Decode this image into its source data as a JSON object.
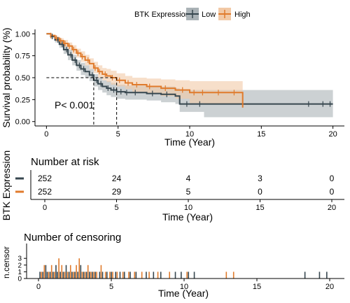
{
  "legend": {
    "title": "BTK Expression",
    "entries": [
      {
        "label": "Low",
        "color": "#37474f"
      },
      {
        "label": "High",
        "color": "#e07b2c"
      }
    ]
  },
  "chart_data": [
    {
      "type": "line",
      "panel": "survival",
      "ylabel": "Survival probability (%)",
      "xlabel": "Time (Year)",
      "xlim": [
        -0.8,
        20.8
      ],
      "ylim": [
        -0.05,
        1.05
      ],
      "x_ticks": [
        0,
        5,
        10,
        15,
        20
      ],
      "y_ticks": [
        0,
        0.25,
        0.5,
        0.75,
        1.0
      ],
      "y_tick_labels": [
        "0.00",
        "0.25",
        "0.50",
        "0.75",
        "1.00"
      ],
      "annotation": "P< 0.001",
      "median_survival": {
        "y": 0.5,
        "x": [
          3.3,
          4.9
        ]
      },
      "series": [
        {
          "name": "Low",
          "color": "#37474f",
          "x": [
            0,
            0.3,
            0.6,
            0.9,
            1.2,
            1.5,
            1.8,
            2.1,
            2.4,
            2.7,
            3.0,
            3.3,
            3.6,
            3.9,
            4.2,
            4.5,
            4.9,
            5.5,
            6.0,
            7.0,
            8.0,
            9.0,
            9.3,
            11.0,
            13.5,
            15.0,
            18.0,
            20.0
          ],
          "y": [
            1.0,
            0.97,
            0.93,
            0.88,
            0.82,
            0.76,
            0.7,
            0.64,
            0.6,
            0.57,
            0.53,
            0.47,
            0.43,
            0.4,
            0.38,
            0.36,
            0.34,
            0.33,
            0.33,
            0.32,
            0.31,
            0.29,
            0.2,
            0.2,
            0.2,
            0.2,
            0.2,
            0.2
          ],
          "ci_low": [
            1.0,
            0.95,
            0.9,
            0.84,
            0.77,
            0.7,
            0.64,
            0.58,
            0.53,
            0.5,
            0.46,
            0.4,
            0.36,
            0.33,
            0.3,
            0.28,
            0.26,
            0.25,
            0.25,
            0.24,
            0.22,
            0.2,
            0.11,
            0.05,
            0.05,
            0.05,
            0.05,
            0.05
          ],
          "ci_high": [
            1.0,
            0.99,
            0.96,
            0.92,
            0.87,
            0.82,
            0.76,
            0.7,
            0.67,
            0.64,
            0.6,
            0.54,
            0.5,
            0.47,
            0.46,
            0.44,
            0.42,
            0.41,
            0.41,
            0.4,
            0.4,
            0.38,
            0.36,
            0.36,
            0.36,
            0.36,
            0.36,
            0.36
          ]
        },
        {
          "name": "High",
          "color": "#e07b2c",
          "x": [
            0,
            0.3,
            0.6,
            0.9,
            1.2,
            1.5,
            1.8,
            2.1,
            2.4,
            2.7,
            3.0,
            3.3,
            3.6,
            3.9,
            4.2,
            4.5,
            4.9,
            5.5,
            6.0,
            7.0,
            8.0,
            9.0,
            10.0,
            11.0,
            13.6,
            13.7
          ],
          "y": [
            1.0,
            0.98,
            0.95,
            0.92,
            0.89,
            0.86,
            0.82,
            0.78,
            0.74,
            0.7,
            0.66,
            0.61,
            0.57,
            0.54,
            0.52,
            0.5,
            0.47,
            0.44,
            0.42,
            0.4,
            0.38,
            0.36,
            0.33,
            0.33,
            0.33,
            0.16
          ],
          "ci_low": [
            1.0,
            0.97,
            0.93,
            0.89,
            0.85,
            0.82,
            0.77,
            0.73,
            0.68,
            0.64,
            0.6,
            0.55,
            0.5,
            0.47,
            0.45,
            0.42,
            0.4,
            0.37,
            0.34,
            0.32,
            0.29,
            0.26,
            0.21,
            0.2,
            0.2,
            0.0
          ],
          "ci_high": [
            1.0,
            0.99,
            0.97,
            0.95,
            0.93,
            0.9,
            0.87,
            0.83,
            0.8,
            0.76,
            0.72,
            0.68,
            0.64,
            0.61,
            0.6,
            0.58,
            0.55,
            0.52,
            0.5,
            0.49,
            0.48,
            0.47,
            0.46,
            0.46,
            0.46,
            0.68
          ]
        }
      ],
      "censor_marks": {
        "Low": [
          0.4,
          0.8,
          1.1,
          1.4,
          1.7,
          2.0,
          2.3,
          2.6,
          3.2,
          3.5,
          3.8,
          4.3,
          4.7,
          5.2,
          5.6,
          6.2,
          7.4,
          8.4,
          9.8,
          10.7,
          18.3,
          19.3,
          19.8
        ],
        "High": [
          0.3,
          0.7,
          1.0,
          1.3,
          1.6,
          1.9,
          2.2,
          2.5,
          2.9,
          3.4,
          3.7,
          4.1,
          4.6,
          5.1,
          5.7,
          6.3,
          7.2,
          8.3,
          9.5,
          10.3,
          10.9,
          12.0,
          13.1
        ]
      }
    },
    {
      "type": "table",
      "panel": "risk_table",
      "title": "Number at risk",
      "ylabel": "BTK Expression",
      "xlabel": "Time (Year)",
      "x_ticks": [
        0,
        5,
        10,
        15,
        20
      ],
      "rows": [
        {
          "name": "Low",
          "color": "#37474f",
          "values": [
            252,
            24,
            4,
            3,
            0
          ]
        },
        {
          "name": "High",
          "color": "#e07b2c",
          "values": [
            252,
            29,
            5,
            0,
            0
          ]
        }
      ]
    },
    {
      "type": "bar",
      "panel": "censoring",
      "title": "Number of censoring",
      "ylabel": "n.censor",
      "xlabel": "Time (Year)",
      "x_ticks": [
        0,
        5,
        10,
        15,
        20
      ],
      "y_ticks": [
        0,
        1,
        2,
        3
      ],
      "ylim": [
        0,
        3.3
      ],
      "series": [
        {
          "name": "Low",
          "color": "#37474f",
          "x": [
            0.1,
            0.3,
            0.5,
            0.6,
            0.8,
            1.0,
            1.2,
            1.3,
            1.5,
            1.7,
            1.9,
            2.1,
            2.3,
            2.5,
            2.7,
            2.9,
            3.1,
            3.3,
            3.5,
            3.7,
            3.9,
            4.2,
            4.4,
            4.7,
            5.0,
            5.3,
            5.6,
            5.9,
            6.3,
            6.7,
            7.4,
            7.9,
            8.4,
            9.4,
            9.8,
            10.3,
            10.7,
            18.3,
            19.3,
            19.8
          ],
          "values": [
            1,
            1,
            2,
            1,
            1,
            1,
            2,
            1,
            1,
            1,
            2,
            1,
            1,
            1,
            1,
            2,
            1,
            1,
            1,
            1,
            1,
            1,
            1,
            1,
            1,
            1,
            1,
            1,
            1,
            1,
            1,
            1,
            1,
            1,
            1,
            1,
            1,
            1,
            1,
            1
          ]
        },
        {
          "name": "High",
          "color": "#e07b2c",
          "x": [
            0.2,
            0.4,
            0.7,
            0.9,
            1.1,
            1.4,
            1.6,
            1.8,
            2.0,
            2.2,
            2.4,
            2.6,
            2.8,
            3.0,
            3.2,
            3.4,
            3.6,
            3.8,
            4.0,
            4.3,
            4.6,
            4.9,
            5.1,
            5.4,
            5.8,
            6.2,
            6.6,
            7.1,
            7.6,
            8.2,
            9.0,
            10.2,
            12.9,
            13.4
          ],
          "values": [
            1,
            2,
            1,
            2,
            1,
            3,
            2,
            1,
            1,
            2,
            1,
            2,
            3,
            1,
            1,
            2,
            1,
            1,
            1,
            2,
            1,
            1,
            1,
            1,
            1,
            1,
            1,
            1,
            1,
            1,
            1,
            1,
            1,
            1
          ]
        }
      ]
    }
  ]
}
